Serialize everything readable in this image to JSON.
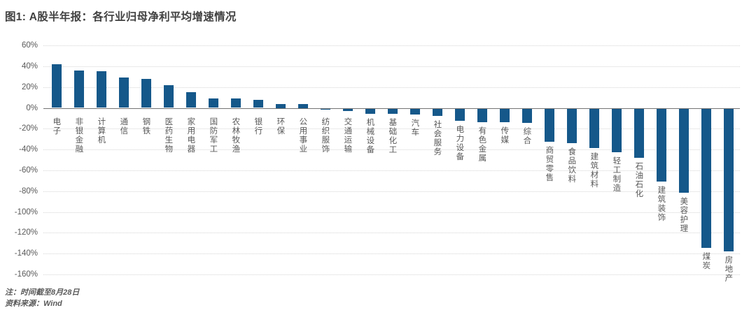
{
  "title": "图1: A股半年报：各行业归母净利平均增速情况",
  "notes": [
    "注：时间截至8月28日",
    "资料来源：Wind"
  ],
  "colors": {
    "bar": "#15588a",
    "grid": "#d4d4d4",
    "zero_line": "#737373",
    "axis_text": "#595959",
    "title_text": "#404040",
    "background": "#ffffff"
  },
  "chart_data": {
    "type": "bar",
    "title": "图1: A股半年报：各行业归母净利平均增速情况",
    "categories": [
      "电子",
      "非银金融",
      "计算机",
      "通信",
      "钢铁",
      "医药生物",
      "家用电器",
      "国防军工",
      "农林牧渔",
      "银行",
      "环保",
      "公用事业",
      "纺织服饰",
      "交通运输",
      "机械设备",
      "基础化工",
      "汽车",
      "社会服务",
      "电力设备",
      "有色金属",
      "传媒",
      "综合",
      "商贸零售",
      "食品饮料",
      "建筑材料",
      "轻工制造",
      "石油石化",
      "建筑装饰",
      "美容护理",
      "煤炭",
      "房地产"
    ],
    "values": [
      42,
      36,
      35,
      29,
      28,
      22,
      15,
      9,
      9,
      8,
      4,
      4,
      -1,
      -2,
      -5,
      -5,
      -6,
      -7,
      -12,
      -13,
      -13,
      -14,
      -32,
      -33,
      -38,
      -42,
      -47,
      -70,
      -81,
      -134,
      -137
    ],
    "unit": "%",
    "xlabel": "",
    "ylabel": "",
    "ylim": [
      -160,
      60
    ],
    "ytick_step": 20,
    "ytick_suffix": "%",
    "grid": true,
    "legend": false
  }
}
